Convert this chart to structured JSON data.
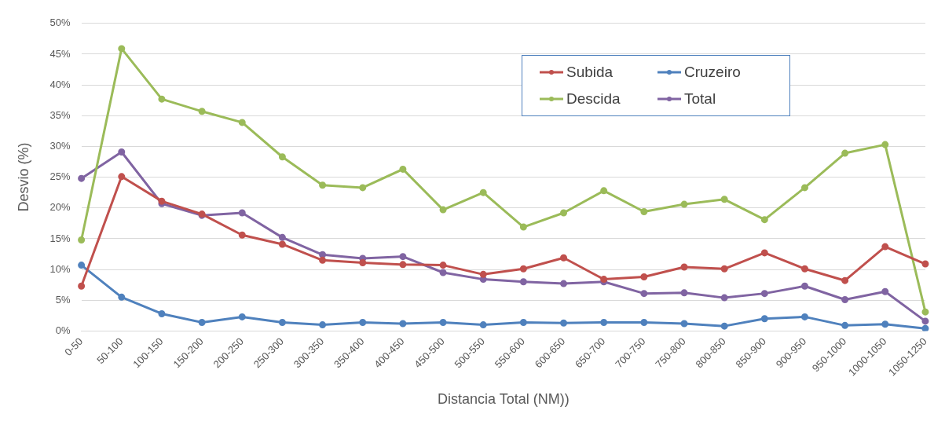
{
  "chart_data": {
    "type": "line",
    "xlabel": "Distancia Total (NM))",
    "ylabel": "Desvio (%)",
    "categories": [
      "0-50",
      "50-100",
      "100-150",
      "150-200",
      "200-250",
      "250-300",
      "300-350",
      "350-400",
      "400-450",
      "450-500",
      "500-550",
      "550-600",
      "600-650",
      "650-700",
      "700-750",
      "750-800",
      "800-850",
      "850-900",
      "900-950",
      "950-1000",
      "1000-1050",
      "1050-1250"
    ],
    "series": [
      {
        "name": "Subida",
        "color": "#c0504d",
        "values": [
          7.3,
          25.1,
          21.1,
          19.0,
          15.6,
          14.1,
          11.5,
          11.1,
          10.8,
          10.7,
          9.2,
          10.1,
          11.9,
          8.4,
          8.8,
          10.4,
          10.1,
          12.7,
          10.1,
          8.2,
          13.7,
          10.9
        ]
      },
      {
        "name": "Cruzeiro",
        "color": "#4f81bd",
        "values": [
          10.7,
          5.5,
          2.8,
          1.4,
          2.3,
          1.4,
          1.0,
          1.4,
          1.2,
          1.4,
          1.0,
          1.4,
          1.3,
          1.4,
          1.4,
          1.2,
          0.8,
          2.0,
          2.3,
          0.9,
          1.1,
          0.4
        ]
      },
      {
        "name": "Descida",
        "color": "#9bbb59",
        "values": [
          14.8,
          45.9,
          37.7,
          35.7,
          33.9,
          28.3,
          23.7,
          23.3,
          26.3,
          19.7,
          22.5,
          16.9,
          19.2,
          22.8,
          19.4,
          20.6,
          21.4,
          18.1,
          23.3,
          28.9,
          30.3,
          3.1
        ]
      },
      {
        "name": "Total",
        "color": "#8064a2",
        "values": [
          24.8,
          29.1,
          20.7,
          18.8,
          19.2,
          15.2,
          12.4,
          11.8,
          12.1,
          9.5,
          8.4,
          8.0,
          7.7,
          8.0,
          6.1,
          6.2,
          5.4,
          6.1,
          7.3,
          5.1,
          6.4,
          1.6
        ]
      }
    ],
    "ylim": [
      0,
      50
    ],
    "yticks": [
      {
        "value": 0,
        "label": "0%"
      },
      {
        "value": 5,
        "label": "5%"
      },
      {
        "value": 10,
        "label": "10%"
      },
      {
        "value": 15,
        "label": "15%"
      },
      {
        "value": 20,
        "label": "20%"
      },
      {
        "value": 25,
        "label": "25%"
      },
      {
        "value": 30,
        "label": "30%"
      },
      {
        "value": 35,
        "label": "35%"
      },
      {
        "value": 40,
        "label": "40%"
      },
      {
        "value": 45,
        "label": "45%"
      },
      {
        "value": 50,
        "label": "50%"
      }
    ],
    "grid": "y",
    "legend": "top right",
    "marker": "circle",
    "line_style": "solid"
  }
}
